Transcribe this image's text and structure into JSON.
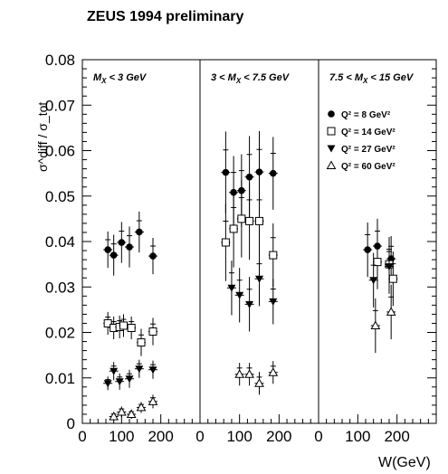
{
  "chart_data": {
    "type": "scatter",
    "title": "ZEUS 1994 preliminary",
    "ylabel": "σ^diff / σ_tot",
    "xlabel": "W(GeV)",
    "ylim": [
      0,
      0.08
    ],
    "yticks": [
      "0",
      "0.01",
      "0.02",
      "0.03",
      "0.04",
      "0.05",
      "0.06",
      "0.07",
      "0.08"
    ],
    "xlim": [
      0,
      300
    ],
    "xticks": [
      "0",
      "100",
      "200"
    ],
    "legend_placement": "right panel, upper",
    "legend": [
      {
        "label": "Q² = 8 GeV²",
        "marker": "filled-circle"
      },
      {
        "label": "Q² = 14 GeV²",
        "marker": "open-square"
      },
      {
        "label": "Q² = 27 GeV²",
        "marker": "filled-triangle-down"
      },
      {
        "label": "Q² = 60 GeV²",
        "marker": "open-triangle-up"
      }
    ],
    "panels": [
      {
        "label": "M_X < 3 GeV",
        "label_text": "M",
        "label_sub": "X",
        "label_rest": " < 3 GeV",
        "label_pre": "",
        "series": [
          {
            "marker": "filled-circle",
            "points": [
              {
                "x": 65,
                "y": 0.0382,
                "err": 0.004
              },
              {
                "x": 80,
                "y": 0.037,
                "err": 0.0045
              },
              {
                "x": 100,
                "y": 0.0398,
                "err": 0.0045
              },
              {
                "x": 120,
                "y": 0.0388,
                "err": 0.0045
              },
              {
                "x": 145,
                "y": 0.0421,
                "err": 0.0045
              },
              {
                "x": 180,
                "y": 0.0368,
                "err": 0.004
              }
            ]
          },
          {
            "marker": "open-square",
            "points": [
              {
                "x": 65,
                "y": 0.022,
                "err": 0.0025
              },
              {
                "x": 80,
                "y": 0.021,
                "err": 0.0025
              },
              {
                "x": 95,
                "y": 0.0212,
                "err": 0.0025
              },
              {
                "x": 105,
                "y": 0.0215,
                "err": 0.0025
              },
              {
                "x": 125,
                "y": 0.021,
                "err": 0.0025
              },
              {
                "x": 150,
                "y": 0.0178,
                "err": 0.003
              },
              {
                "x": 180,
                "y": 0.0202,
                "err": 0.003
              }
            ]
          },
          {
            "marker": "filled-triangle-down",
            "points": [
              {
                "x": 65,
                "y": 0.0088,
                "err": 0.0015
              },
              {
                "x": 80,
                "y": 0.0115,
                "err": 0.002
              },
              {
                "x": 95,
                "y": 0.0092,
                "err": 0.0018
              },
              {
                "x": 120,
                "y": 0.0098,
                "err": 0.002
              },
              {
                "x": 145,
                "y": 0.012,
                "err": 0.002
              },
              {
                "x": 180,
                "y": 0.0118,
                "err": 0.002
              }
            ]
          },
          {
            "marker": "open-triangle-up",
            "points": [
              {
                "x": 80,
                "y": 0.0015,
                "err": 0.001
              },
              {
                "x": 100,
                "y": 0.0025,
                "err": 0.0012
              },
              {
                "x": 125,
                "y": 0.002,
                "err": 0.001
              },
              {
                "x": 150,
                "y": 0.0035,
                "err": 0.0012
              },
              {
                "x": 180,
                "y": 0.0048,
                "err": 0.0015
              }
            ]
          }
        ]
      },
      {
        "label": "3 < M_X < 7.5 GeV",
        "label_pre": "3 < ",
        "label_text": "M",
        "label_sub": "X",
        "label_rest": " < 7.5 GeV",
        "series": [
          {
            "marker": "filled-circle",
            "points": [
              {
                "x": 65,
                "y": 0.0552,
                "err": 0.009
              },
              {
                "x": 85,
                "y": 0.0508,
                "err": 0.008
              },
              {
                "x": 105,
                "y": 0.0512,
                "err": 0.008
              },
              {
                "x": 125,
                "y": 0.0542,
                "err": 0.009
              },
              {
                "x": 150,
                "y": 0.0553,
                "err": 0.009
              },
              {
                "x": 185,
                "y": 0.055,
                "err": 0.008
              }
            ]
          },
          {
            "marker": "open-square",
            "points": [
              {
                "x": 65,
                "y": 0.0398,
                "err": 0.0085
              },
              {
                "x": 85,
                "y": 0.0428,
                "err": 0.0085
              },
              {
                "x": 105,
                "y": 0.045,
                "err": 0.0085
              },
              {
                "x": 125,
                "y": 0.0445,
                "err": 0.0085
              },
              {
                "x": 150,
                "y": 0.0445,
                "err": 0.0085
              },
              {
                "x": 185,
                "y": 0.037,
                "err": 0.007
              }
            ]
          },
          {
            "marker": "filled-triangle-down",
            "points": [
              {
                "x": 80,
                "y": 0.0298,
                "err": 0.006
              },
              {
                "x": 100,
                "y": 0.0282,
                "err": 0.006
              },
              {
                "x": 125,
                "y": 0.0262,
                "err": 0.006
              },
              {
                "x": 150,
                "y": 0.0318,
                "err": 0.006
              },
              {
                "x": 185,
                "y": 0.0268,
                "err": 0.005
              }
            ]
          },
          {
            "marker": "open-triangle-up",
            "points": [
              {
                "x": 100,
                "y": 0.0108,
                "err": 0.0025
              },
              {
                "x": 125,
                "y": 0.0108,
                "err": 0.0025
              },
              {
                "x": 150,
                "y": 0.0088,
                "err": 0.0025
              },
              {
                "x": 185,
                "y": 0.0112,
                "err": 0.0025
              }
            ]
          }
        ]
      },
      {
        "label": "7.5 < M_X < 15 GeV",
        "label_pre": "7.5 < ",
        "label_text": "M",
        "label_sub": "X",
        "label_rest": " < 15 GeV",
        "series": [
          {
            "marker": "filled-circle",
            "points": [
              {
                "x": 125,
                "y": 0.0382,
                "err": 0.006
              },
              {
                "x": 150,
                "y": 0.039,
                "err": 0.006
              },
              {
                "x": 185,
                "y": 0.0362,
                "err": 0.005
              }
            ]
          },
          {
            "marker": "open-square",
            "points": [
              {
                "x": 150,
                "y": 0.0355,
                "err": 0.006
              },
              {
                "x": 180,
                "y": 0.035,
                "err": 0.006
              },
              {
                "x": 190,
                "y": 0.0318,
                "err": 0.006
              }
            ]
          },
          {
            "marker": "filled-triangle-down",
            "points": [
              {
                "x": 140,
                "y": 0.0315,
                "err": 0.006
              },
              {
                "x": 180,
                "y": 0.0345,
                "err": 0.006
              }
            ]
          },
          {
            "marker": "open-triangle-up",
            "points": [
              {
                "x": 145,
                "y": 0.0215,
                "err": 0.006
              },
              {
                "x": 185,
                "y": 0.0245,
                "err": 0.006
              }
            ]
          }
        ]
      }
    ]
  }
}
